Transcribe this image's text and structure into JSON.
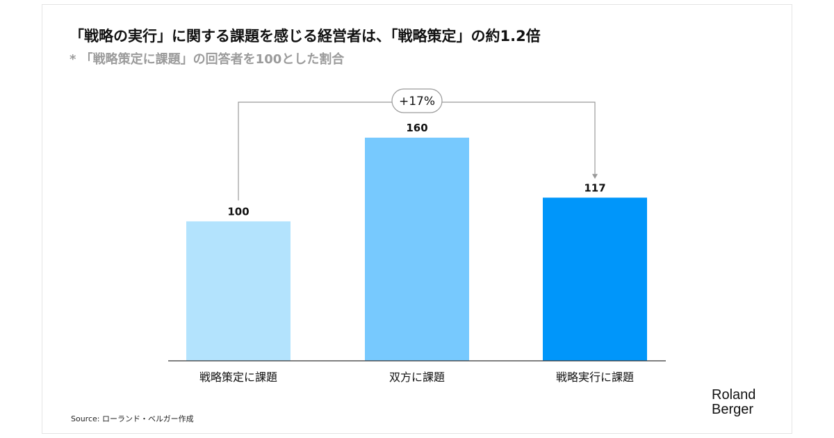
{
  "title": "「戦略の実行」に関する課題を感じる経営者は、「戦略策定」の約1.2倍",
  "subtitle": "* 「戦略策定に課題」の回答者を100とした割合",
  "annotation": "+17%",
  "source": "Source: ローランド・ベルガー作成",
  "logo": {
    "line1": "Roland",
    "line2": "Berger"
  },
  "colors": {
    "bar1": "#b3e3fd",
    "bar2": "#77c9fe",
    "bar3": "#0096fa",
    "axis": "#333333",
    "bracket": "#999999"
  },
  "chart_data": {
    "type": "bar",
    "categories": [
      "戦略策定に課題",
      "双方に課題",
      "戦略実行に課題"
    ],
    "values": [
      100,
      160,
      117
    ],
    "title": "「戦略の実行」に関する課題を感じる経営者は、「戦略策定」の約1.2倍",
    "subtitle": "* 「戦略策定に課題」の回答者を100とした割合",
    "ylim": [
      0,
      160
    ],
    "grid": false,
    "legend": "none"
  }
}
